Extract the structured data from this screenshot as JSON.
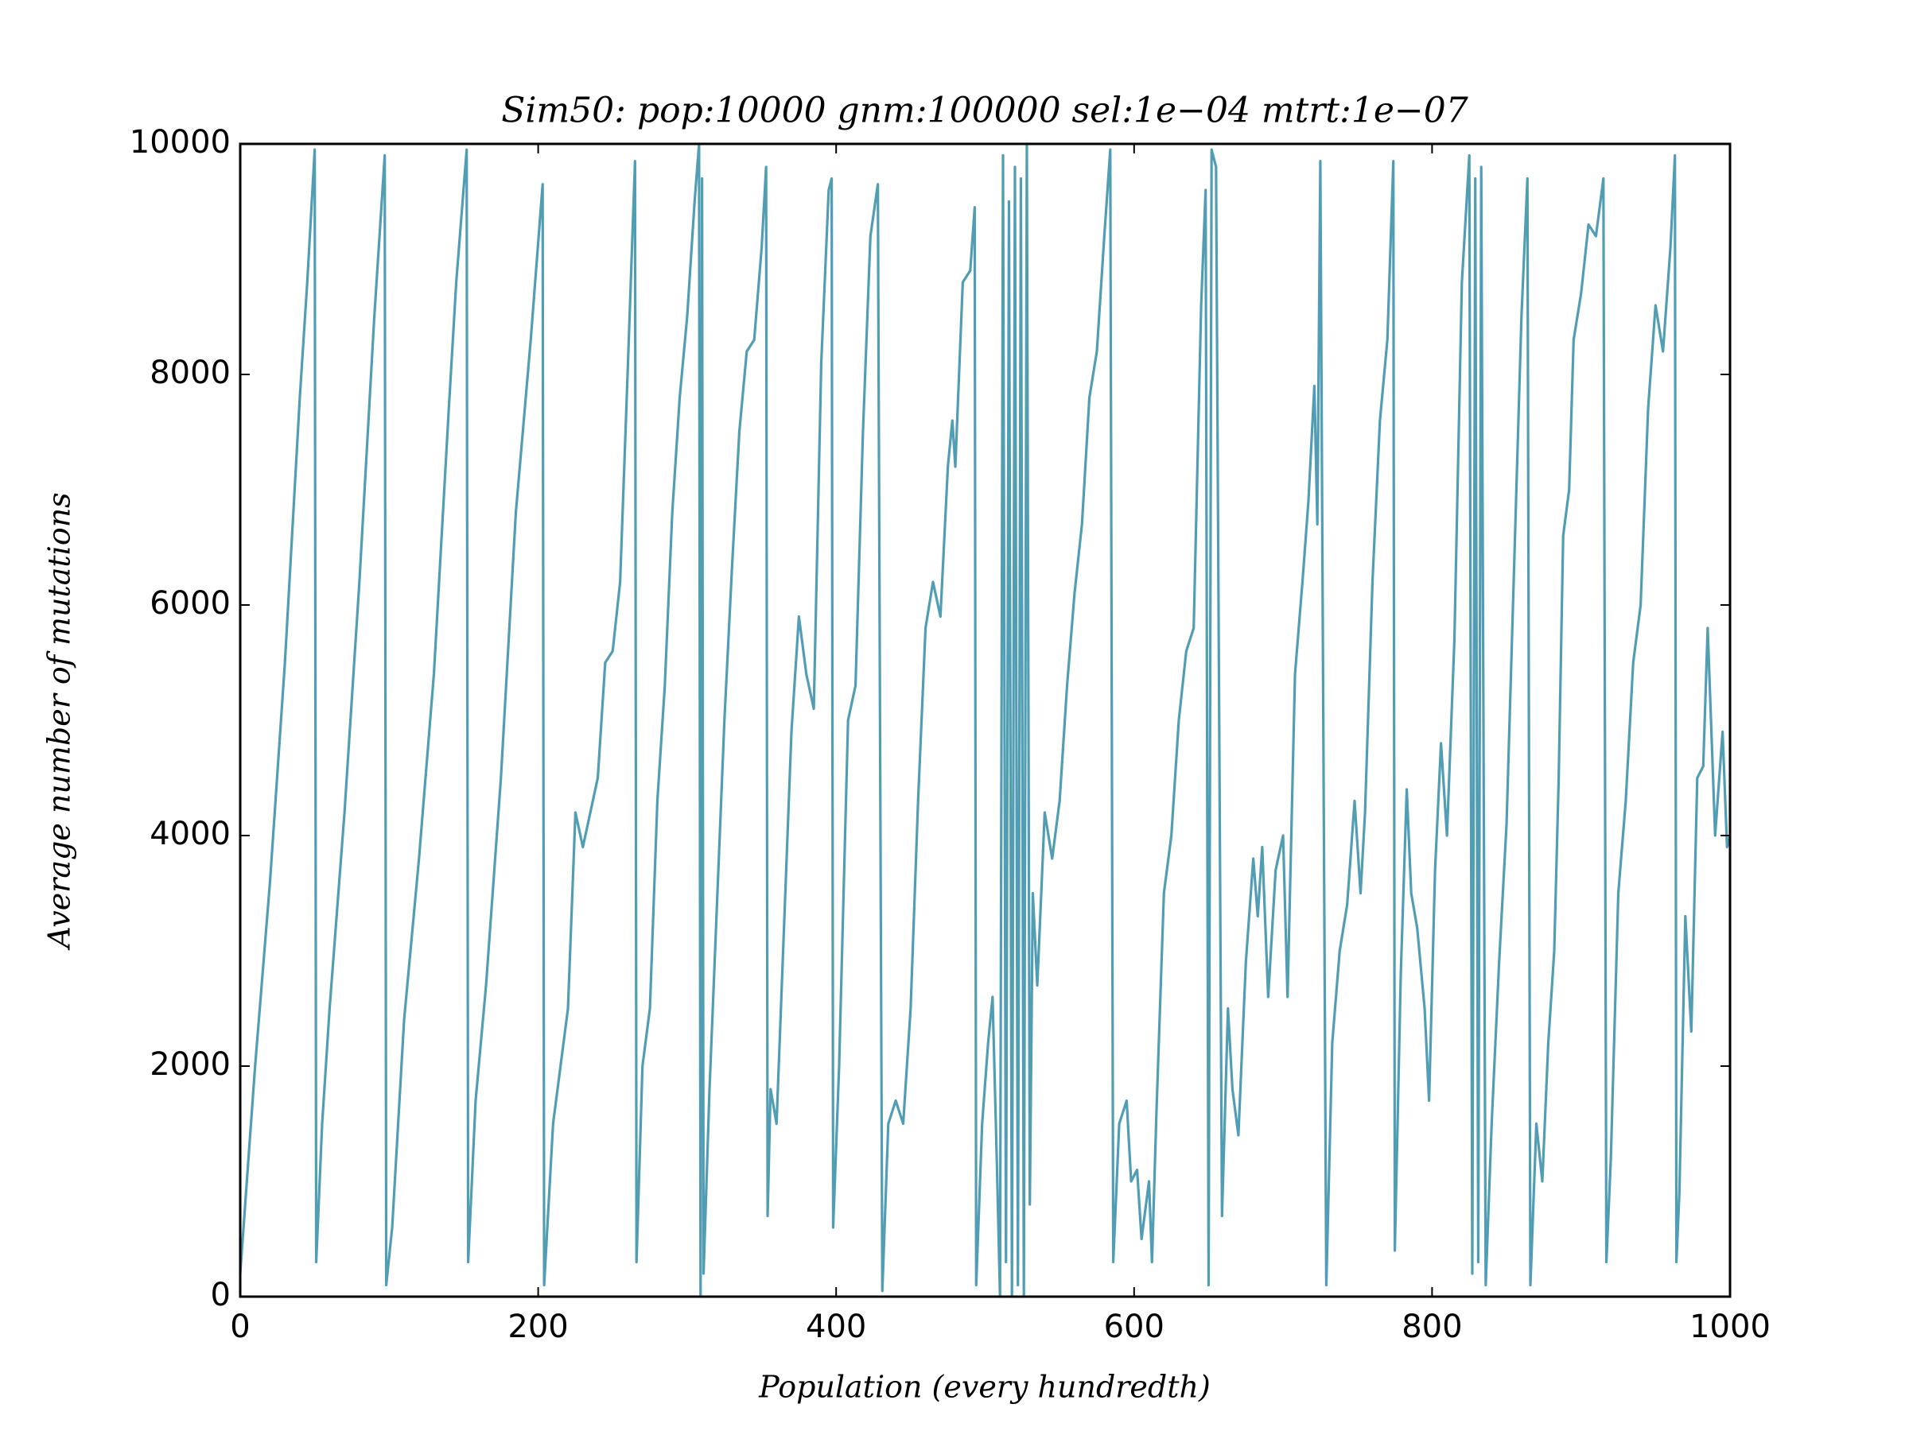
{
  "chart_data": {
    "type": "line",
    "title": "Sim50: pop:10000 gnm:100000 sel:1e−04 mtrt:1e−07",
    "xlabel": "Population (every hundredth)",
    "ylabel": "Average number of mutations",
    "color": "#519db3",
    "xlim": [
      0,
      1000
    ],
    "xticks": [
      0,
      200,
      400,
      600,
      800,
      1000
    ],
    "ylim": [
      0,
      10000
    ],
    "yticks": [
      0,
      2000,
      4000,
      6000,
      8000,
      10000
    ],
    "grid": false,
    "x": [
      0,
      10,
      20,
      30,
      40,
      45,
      50,
      51,
      55,
      60,
      70,
      80,
      90,
      97,
      98,
      102,
      110,
      120,
      130,
      140,
      145,
      152,
      153,
      158,
      165,
      175,
      185,
      195,
      203,
      204,
      210,
      220,
      225,
      230,
      240,
      245,
      250,
      255,
      260,
      265,
      266,
      270,
      275,
      280,
      285,
      290,
      295,
      300,
      305,
      308,
      309,
      310,
      311,
      315,
      320,
      325,
      330,
      335,
      340,
      345,
      350,
      353,
      354,
      356,
      360,
      365,
      370,
      375,
      380,
      385,
      390,
      395,
      397,
      398,
      402,
      408,
      413,
      418,
      423,
      428,
      431,
      435,
      440,
      445,
      450,
      455,
      460,
      465,
      470,
      475,
      478,
      480,
      485,
      490,
      493,
      494,
      498,
      502,
      505,
      508,
      510,
      512,
      514,
      516,
      518,
      520,
      522,
      524,
      526,
      528,
      530,
      532,
      535,
      540,
      545,
      550,
      555,
      560,
      565,
      570,
      575,
      580,
      584,
      586,
      590,
      595,
      598,
      602,
      605,
      610,
      612,
      615,
      620,
      625,
      630,
      635,
      640,
      645,
      648,
      650,
      652,
      655,
      659,
      663,
      666,
      670,
      675,
      680,
      683,
      686,
      690,
      695,
      700,
      703,
      708,
      713,
      717,
      721,
      723,
      725,
      729,
      733,
      738,
      743,
      748,
      752,
      755,
      760,
      765,
      770,
      774,
      775,
      779,
      783,
      786,
      790,
      795,
      798,
      802,
      806,
      810,
      815,
      820,
      825,
      827,
      829,
      831,
      833,
      836,
      840,
      845,
      850,
      855,
      860,
      864,
      866,
      870,
      874,
      878,
      882,
      885,
      888,
      892,
      895,
      900,
      905,
      910,
      915,
      917,
      920,
      925,
      930,
      935,
      940,
      945,
      950,
      955,
      960,
      963,
      964,
      966,
      970,
      974,
      978,
      982,
      985,
      990,
      995,
      998,
      1000
    ],
    "values": [
      200,
      2000,
      3600,
      5500,
      7800,
      8800,
      9950,
      300,
      1500,
      2500,
      4200,
      6200,
      8500,
      9900,
      100,
      600,
      2400,
      3800,
      5400,
      7700,
      8800,
      9950,
      300,
      1700,
      2700,
      4500,
      6800,
      8300,
      9650,
      100,
      1500,
      2500,
      4200,
      3900,
      4500,
      5500,
      5600,
      6200,
      8000,
      9850,
      300,
      2000,
      2500,
      4300,
      5300,
      6800,
      7800,
      8500,
      9500,
      10000,
      0,
      9700,
      200,
      1800,
      3400,
      5000,
      6300,
      7500,
      8200,
      8300,
      9100,
      9800,
      700,
      1800,
      1500,
      3200,
      4900,
      5900,
      5400,
      5100,
      8100,
      9600,
      9700,
      600,
      2000,
      5000,
      5300,
      7500,
      9200,
      9650,
      50,
      1500,
      1700,
      1500,
      2500,
      4300,
      5800,
      6200,
      5900,
      7200,
      7600,
      7200,
      8800,
      8900,
      9450,
      100,
      1500,
      2200,
      2600,
      1100,
      0,
      9900,
      300,
      9500,
      0,
      9800,
      100,
      9700,
      0,
      10000,
      800,
      3500,
      2700,
      4200,
      3800,
      4300,
      5300,
      6100,
      6700,
      7800,
      8200,
      9200,
      9950,
      300,
      1500,
      1700,
      1000,
      1100,
      500,
      1000,
      300,
      1600,
      3500,
      4000,
      5000,
      5600,
      5800,
      8600,
      9600,
      100,
      9950,
      9800,
      700,
      2500,
      1800,
      1400,
      2900,
      3800,
      3300,
      3900,
      2600,
      3700,
      4000,
      2600,
      5400,
      6200,
      6900,
      7900,
      6700,
      9850,
      100,
      2200,
      3000,
      3400,
      4300,
      3500,
      4200,
      6200,
      7600,
      8300,
      9850,
      400,
      2800,
      4400,
      3500,
      3200,
      2500,
      1700,
      3700,
      4800,
      4000,
      5700,
      8800,
      9900,
      200,
      9700,
      300,
      9800,
      100,
      1500,
      2900,
      4100,
      6300,
      8500,
      9700,
      100,
      1500,
      1000,
      2200,
      3000,
      4500,
      6600,
      7000,
      8300,
      8700,
      9300,
      9200,
      9700,
      300,
      1200,
      3500,
      4300,
      5500,
      6000,
      7700,
      8600,
      8200,
      9100,
      9900,
      300,
      900,
      3300,
      2300,
      4500,
      4600,
      5800,
      4000,
      4900,
      3900,
      4000
    ]
  }
}
